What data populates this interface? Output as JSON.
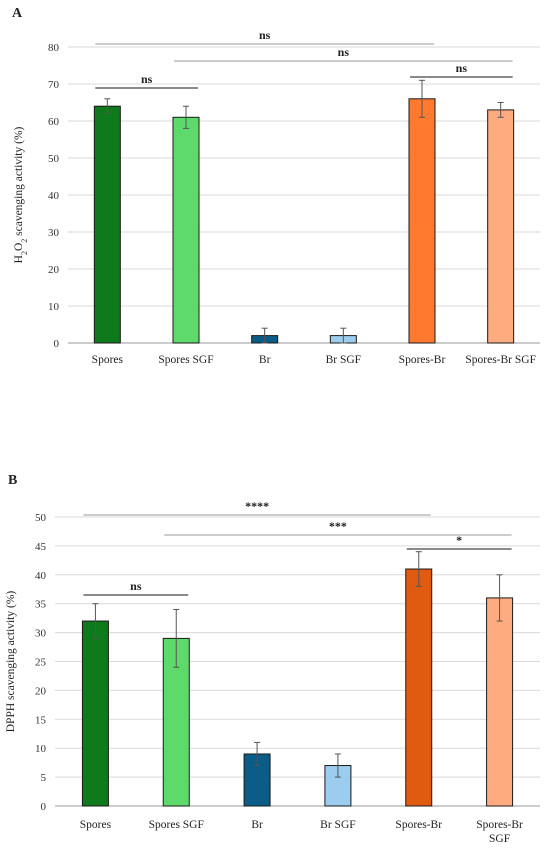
{
  "chart_data": [
    {
      "panel": "A",
      "type": "bar",
      "ylabel_parts": [
        "H",
        "2",
        "O",
        "2",
        " scavenging activity (%)"
      ],
      "categories": [
        "Spores",
        "Spores SGF",
        "Br",
        "Br SGF",
        "Spores-Br",
        "Spores-Br SGF"
      ],
      "values": [
        64,
        61,
        2,
        2,
        66,
        63
      ],
      "errors": [
        2,
        3,
        2,
        2,
        5,
        2
      ],
      "colors": [
        "#0e7a1c",
        "#5ed96b",
        "#0b5c86",
        "#9ccdee",
        "#ff7a2e",
        "#ffab80"
      ],
      "ylim": [
        0,
        80
      ],
      "yticks": [
        0,
        10,
        20,
        30,
        40,
        50,
        60,
        70,
        80
      ],
      "grid": true,
      "comparisons": [
        {
          "from": 0,
          "to": 4,
          "label": "ns"
        },
        {
          "from": 1,
          "to": 5,
          "label": "ns"
        },
        {
          "from": 0,
          "to": 1,
          "label": "ns"
        },
        {
          "from": 4,
          "to": 5,
          "label": "ns"
        }
      ]
    },
    {
      "panel": "B",
      "type": "bar",
      "ylabel": "DPPH scavenging activity (%)",
      "categories": [
        "Spores",
        "Spores SGF",
        "Br",
        "Br SGF",
        "Spores-Br",
        "Spores-Br SGF"
      ],
      "values": [
        32,
        29,
        9,
        7,
        41,
        36
      ],
      "errors": [
        3,
        5,
        2,
        2,
        3,
        4
      ],
      "colors": [
        "#0e7a1c",
        "#5ed96b",
        "#0b5c86",
        "#9ccdee",
        "#e05a10",
        "#ffab80"
      ],
      "ylim": [
        0,
        50
      ],
      "yticks": [
        0,
        5,
        10,
        15,
        20,
        25,
        30,
        35,
        40,
        45,
        50
      ],
      "grid": true,
      "comparisons": [
        {
          "from": 0,
          "to": 4,
          "label": "****"
        },
        {
          "from": 1,
          "to": 5,
          "label": "***"
        },
        {
          "from": 4,
          "to": 5,
          "label": "*"
        },
        {
          "from": 0,
          "to": 1,
          "label": "ns"
        }
      ]
    }
  ]
}
